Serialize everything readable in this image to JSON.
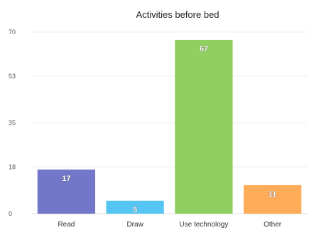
{
  "chart_data": {
    "type": "bar",
    "title": "Activities before bed",
    "categories": [
      "Read",
      "Draw",
      "Use technology",
      "Other"
    ],
    "values": [
      17,
      5,
      67,
      11
    ],
    "colors": [
      "#7277c9",
      "#55c6f4",
      "#8fd060",
      "#ffac58"
    ],
    "yticks": [
      "0",
      "18",
      "35",
      "53",
      "70"
    ],
    "ylim": [
      0,
      70
    ],
    "grid": true,
    "legend": "none",
    "xlabel": "",
    "ylabel": ""
  }
}
